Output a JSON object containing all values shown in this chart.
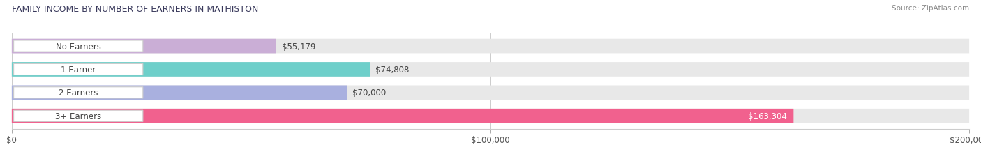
{
  "title": "Family Income by Number of Earners in Mathiston",
  "title_upper": "FAMILY INCOME BY NUMBER OF EARNERS IN MATHISTON",
  "source": "Source: ZipAtlas.com",
  "categories": [
    "No Earners",
    "1 Earner",
    "2 Earners",
    "3+ Earners"
  ],
  "values": [
    55179,
    74808,
    70000,
    163304
  ],
  "bar_colors": [
    "#caaed6",
    "#6ecfca",
    "#a9b0df",
    "#f1618e"
  ],
  "bg_bar_color": "#e8e8e8",
  "value_labels": [
    "$55,179",
    "$74,808",
    "$70,000",
    "$163,304"
  ],
  "value_label_colors": [
    "#555555",
    "#555555",
    "#555555",
    "#ffffff"
  ],
  "xmax": 200000,
  "xticks": [
    0,
    100000,
    200000
  ],
  "xtick_labels": [
    "$0",
    "$100,000",
    "$200,000"
  ],
  "background_color": "#ffffff",
  "title_color": "#3a3a5c",
  "source_color": "#888888",
  "pill_bg": "#ffffff",
  "pill_border": "#cccccc",
  "label_text_color": "#444444",
  "grid_color": "#cccccc"
}
